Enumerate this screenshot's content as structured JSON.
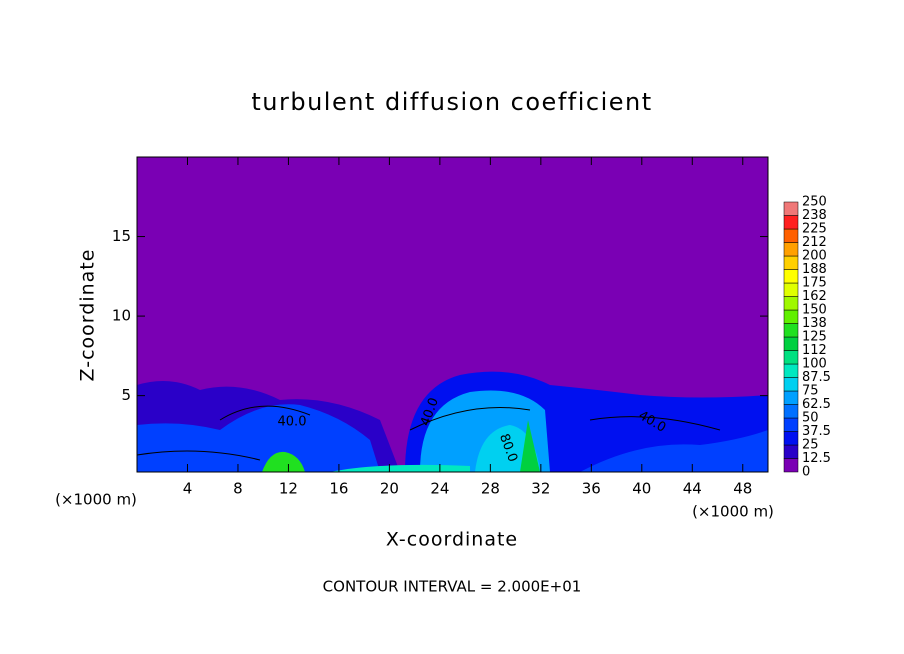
{
  "chart_data": {
    "type": "contour",
    "title": "turbulent diffusion coefficient",
    "x_label": "X-coordinate",
    "y_label": "Z-coordinate",
    "x_unit": "(×1000 m)",
    "y_unit": "(×1000 m)",
    "footer": "CONTOUR INTERVAL = 2.000E+01",
    "xlim": [
      0,
      50
    ],
    "ylim": [
      0.2,
      20
    ],
    "xticks": [
      4,
      8,
      12,
      16,
      20,
      24,
      28,
      32,
      36,
      40,
      44,
      48
    ],
    "yticks": [
      5,
      10,
      15
    ],
    "annotations": [
      "40.0",
      "40.0",
      "80.0",
      "40.0"
    ],
    "colorbar": {
      "levels": [
        0,
        12.5,
        25,
        37.5,
        50,
        62.5,
        75,
        87.5,
        100,
        112,
        125,
        138,
        150,
        162,
        175,
        188,
        200,
        212,
        225,
        238,
        250
      ],
      "colors": [
        "#7a00b4",
        "#2a00c8",
        "#0010f0",
        "#0040ff",
        "#0070ff",
        "#00a0ff",
        "#00d0f0",
        "#00e8c0",
        "#00e080",
        "#00d040",
        "#20e020",
        "#60f000",
        "#a0f800",
        "#e0ff00",
        "#ffff00",
        "#ffd000",
        "#ffa000",
        "#ff6000",
        "#ff2020",
        "#f07878"
      ]
    }
  }
}
